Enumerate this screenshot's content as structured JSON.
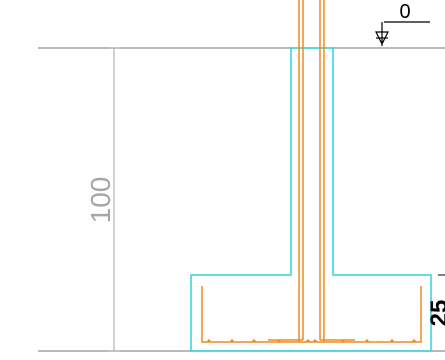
{
  "drawing": {
    "level_label": "0",
    "height_dimension": "100",
    "footing_dimension_partial": "25",
    "colors": {
      "concrete_outline": "#2fd2dc",
      "reinforcement": "#f08c1e",
      "dimension_lines": "#a6a6a6",
      "level_lines": "#909090",
      "annotation": "#000000"
    }
  }
}
